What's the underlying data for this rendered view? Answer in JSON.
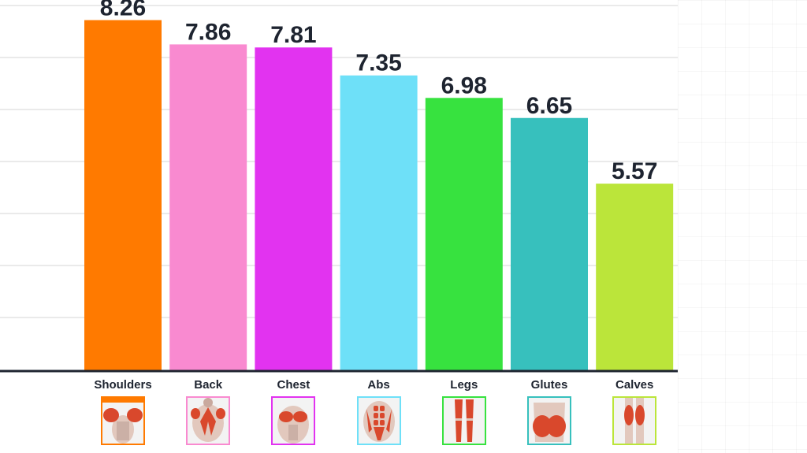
{
  "chart_data": {
    "type": "bar",
    "categories": [
      "Shoulders",
      "Back",
      "Chest",
      "Abs",
      "Legs",
      "Glutes",
      "Calves"
    ],
    "values": [
      8.26,
      7.86,
      7.81,
      7.35,
      6.98,
      6.65,
      5.57
    ],
    "value_labels": [
      "8.26",
      "7.86",
      "7.81",
      "7.35",
      "6.98",
      "6.65",
      "5.57"
    ],
    "colors": [
      "#ff7a00",
      "#f98ad0",
      "#e233f0",
      "#6ee0f8",
      "#37e23f",
      "#37c0bd",
      "#bbe53a"
    ],
    "icon_names": [
      "shoulders-muscle-icon",
      "back-muscle-icon",
      "chest-muscle-icon",
      "abs-muscle-icon",
      "legs-muscle-icon",
      "glutes-muscle-icon",
      "calves-muscle-icon"
    ],
    "icon_frame_colors": [
      "#ff7a00",
      "#f98ad0",
      "#e233f0",
      "#6ee0f8",
      "#37e23f",
      "#37c0bd",
      "#bbe53a"
    ],
    "ylim": [
      2.5,
      8.5
    ],
    "grid": true,
    "legend": "none"
  }
}
